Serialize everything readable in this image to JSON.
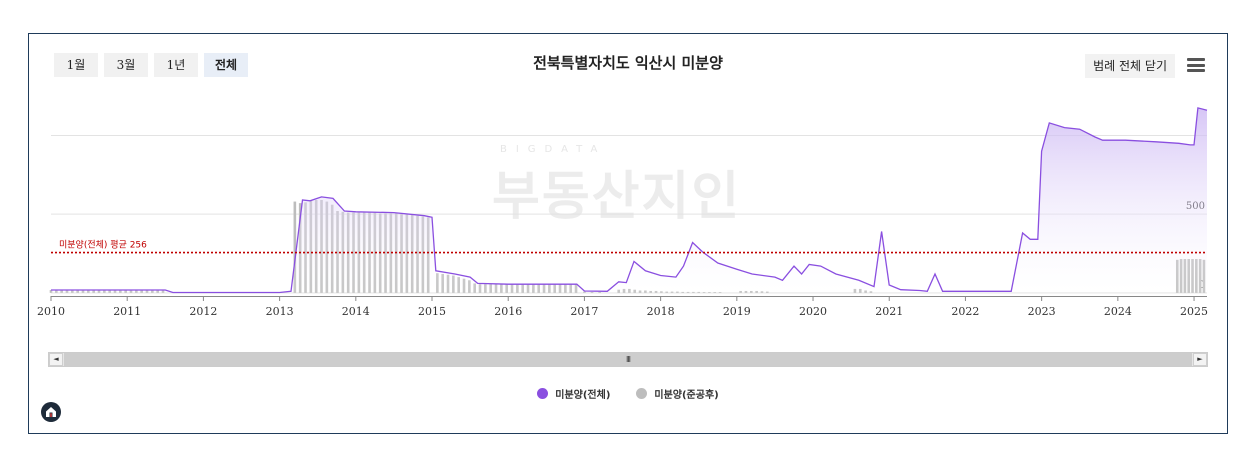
{
  "range_tabs": [
    {
      "label": "1월",
      "active": false
    },
    {
      "label": "3월",
      "active": false
    },
    {
      "label": "1년",
      "active": false
    },
    {
      "label": "전체",
      "active": true
    }
  ],
  "title": "전북특별자치도 익산시 미분양",
  "legend_toggle_label": "범례 전체 닫기",
  "menu_icon": "hamburger-menu-icon",
  "watermark": {
    "top": "BIGDATA",
    "text": "부동산지인"
  },
  "legend": [
    {
      "label": "미분양(전체)",
      "color": "#8a4fe0"
    },
    {
      "label": "미분양(준공후)",
      "color": "#bdbdbd"
    }
  ],
  "scroll_grip": "III",
  "colors": {
    "line": "#8a4fe0",
    "area_top": "#c9b3f3",
    "bars": "#bdbdbd",
    "average": "#c00000",
    "grid": "#e3e3e3"
  },
  "chart_data": {
    "type": "area",
    "title": "전북특별자치도 익산시 미분양",
    "x_ticks": [
      "2010",
      "2011",
      "2012",
      "2013",
      "2014",
      "2015",
      "2016",
      "2017",
      "2018",
      "2019",
      "2020",
      "2021",
      "2022",
      "2023",
      "2024",
      "2025"
    ],
    "y_ticks": [
      {
        "value": 0,
        "label": "0"
      },
      {
        "value": 500,
        "label": "500"
      },
      {
        "value": 1000,
        "label": ""
      }
    ],
    "ylim": [
      -20,
      1200
    ],
    "xlim": [
      2010.0,
      2025.17
    ],
    "average": {
      "value": 256,
      "label": "미분양(전체) 평균 256",
      "color": "#c00000"
    },
    "grid": true,
    "legend_position": "bottom",
    "series": [
      {
        "name": "미분양(전체)",
        "kind": "area-line",
        "points": [
          [
            2010.0,
            18
          ],
          [
            2011.5,
            18
          ],
          [
            2011.6,
            2
          ],
          [
            2013.0,
            2
          ],
          [
            2013.15,
            10
          ],
          [
            2013.3,
            590
          ],
          [
            2013.4,
            585
          ],
          [
            2013.55,
            610
          ],
          [
            2013.7,
            600
          ],
          [
            2013.85,
            520
          ],
          [
            2014.0,
            515
          ],
          [
            2014.5,
            510
          ],
          [
            2014.9,
            490
          ],
          [
            2015.0,
            480
          ],
          [
            2015.05,
            140
          ],
          [
            2015.3,
            120
          ],
          [
            2015.5,
            100
          ],
          [
            2015.6,
            60
          ],
          [
            2016.0,
            55
          ],
          [
            2016.9,
            55
          ],
          [
            2017.0,
            12
          ],
          [
            2017.3,
            10
          ],
          [
            2017.45,
            70
          ],
          [
            2017.55,
            65
          ],
          [
            2017.65,
            200
          ],
          [
            2017.8,
            140
          ],
          [
            2018.0,
            110
          ],
          [
            2018.2,
            100
          ],
          [
            2018.3,
            170
          ],
          [
            2018.42,
            320
          ],
          [
            2018.55,
            260
          ],
          [
            2018.75,
            190
          ],
          [
            2019.0,
            150
          ],
          [
            2019.2,
            120
          ],
          [
            2019.5,
            100
          ],
          [
            2019.6,
            80
          ],
          [
            2019.75,
            170
          ],
          [
            2019.85,
            120
          ],
          [
            2019.95,
            180
          ],
          [
            2020.1,
            170
          ],
          [
            2020.3,
            120
          ],
          [
            2020.6,
            80
          ],
          [
            2020.8,
            40
          ],
          [
            2020.9,
            390
          ],
          [
            2021.0,
            50
          ],
          [
            2021.15,
            20
          ],
          [
            2021.4,
            15
          ],
          [
            2021.5,
            10
          ],
          [
            2021.6,
            120
          ],
          [
            2021.7,
            10
          ],
          [
            2022.0,
            10
          ],
          [
            2022.3,
            10
          ],
          [
            2022.6,
            10
          ],
          [
            2022.75,
            380
          ],
          [
            2022.85,
            340
          ],
          [
            2022.95,
            340
          ],
          [
            2023.0,
            900
          ],
          [
            2023.1,
            1080
          ],
          [
            2023.3,
            1050
          ],
          [
            2023.5,
            1040
          ],
          [
            2023.7,
            990
          ],
          [
            2023.8,
            970
          ],
          [
            2024.1,
            970
          ],
          [
            2024.5,
            960
          ],
          [
            2024.8,
            950
          ],
          [
            2024.95,
            940
          ],
          [
            2025.0,
            940
          ],
          [
            2025.05,
            1175
          ],
          [
            2025.17,
            1160
          ]
        ]
      },
      {
        "name": "미분양(준공후)",
        "kind": "bar",
        "points": [
          [
            2010.0,
            18
          ],
          [
            2010.07,
            18
          ],
          [
            2010.14,
            18
          ],
          [
            2010.21,
            18
          ],
          [
            2010.28,
            18
          ],
          [
            2010.35,
            18
          ],
          [
            2010.42,
            18
          ],
          [
            2010.49,
            18
          ],
          [
            2010.56,
            18
          ],
          [
            2010.63,
            18
          ],
          [
            2010.7,
            18
          ],
          [
            2010.77,
            18
          ],
          [
            2010.84,
            18
          ],
          [
            2010.91,
            18
          ],
          [
            2010.98,
            18
          ],
          [
            2011.05,
            18
          ],
          [
            2011.12,
            18
          ],
          [
            2011.19,
            18
          ],
          [
            2011.26,
            18
          ],
          [
            2011.33,
            18
          ],
          [
            2011.4,
            18
          ],
          [
            2011.47,
            18
          ],
          [
            2013.2,
            580
          ],
          [
            2013.27,
            570
          ],
          [
            2013.34,
            575
          ],
          [
            2013.41,
            585
          ],
          [
            2013.48,
            590
          ],
          [
            2013.55,
            590
          ],
          [
            2013.62,
            580
          ],
          [
            2013.69,
            560
          ],
          [
            2013.76,
            520
          ],
          [
            2013.83,
            515
          ],
          [
            2013.9,
            510
          ],
          [
            2013.97,
            510
          ],
          [
            2014.04,
            510
          ],
          [
            2014.11,
            510
          ],
          [
            2014.18,
            510
          ],
          [
            2014.25,
            510
          ],
          [
            2014.32,
            505
          ],
          [
            2014.39,
            505
          ],
          [
            2014.46,
            505
          ],
          [
            2014.53,
            505
          ],
          [
            2014.6,
            500
          ],
          [
            2014.67,
            500
          ],
          [
            2014.74,
            495
          ],
          [
            2014.81,
            490
          ],
          [
            2014.88,
            485
          ],
          [
            2014.95,
            480
          ],
          [
            2015.07,
            125
          ],
          [
            2015.14,
            120
          ],
          [
            2015.21,
            115
          ],
          [
            2015.28,
            110
          ],
          [
            2015.35,
            100
          ],
          [
            2015.42,
            90
          ],
          [
            2015.49,
            80
          ],
          [
            2015.56,
            60
          ],
          [
            2015.63,
            55
          ],
          [
            2015.7,
            55
          ],
          [
            2015.77,
            55
          ],
          [
            2015.84,
            55
          ],
          [
            2015.91,
            55
          ],
          [
            2015.98,
            55
          ],
          [
            2016.05,
            55
          ],
          [
            2016.12,
            55
          ],
          [
            2016.19,
            55
          ],
          [
            2016.26,
            55
          ],
          [
            2016.33,
            55
          ],
          [
            2016.4,
            55
          ],
          [
            2016.47,
            55
          ],
          [
            2016.54,
            55
          ],
          [
            2016.61,
            55
          ],
          [
            2016.68,
            55
          ],
          [
            2016.75,
            55
          ],
          [
            2016.82,
            55
          ],
          [
            2016.89,
            55
          ],
          [
            2017.0,
            8
          ],
          [
            2017.1,
            6
          ],
          [
            2017.2,
            6
          ],
          [
            2017.45,
            20
          ],
          [
            2017.52,
            25
          ],
          [
            2017.59,
            25
          ],
          [
            2017.66,
            20
          ],
          [
            2017.73,
            15
          ],
          [
            2017.8,
            15
          ],
          [
            2017.87,
            12
          ],
          [
            2017.94,
            12
          ],
          [
            2018.01,
            10
          ],
          [
            2018.08,
            8
          ],
          [
            2018.15,
            8
          ],
          [
            2018.22,
            8
          ],
          [
            2018.29,
            6
          ],
          [
            2018.36,
            6
          ],
          [
            2018.43,
            6
          ],
          [
            2018.5,
            6
          ],
          [
            2018.57,
            5
          ],
          [
            2018.64,
            5
          ],
          [
            2018.71,
            5
          ],
          [
            2018.78,
            5
          ],
          [
            2019.05,
            12
          ],
          [
            2019.12,
            12
          ],
          [
            2019.19,
            12
          ],
          [
            2019.26,
            12
          ],
          [
            2019.33,
            10
          ],
          [
            2019.4,
            8
          ],
          [
            2020.55,
            25
          ],
          [
            2020.62,
            25
          ],
          [
            2020.69,
            15
          ],
          [
            2020.76,
            10
          ]
        ]
      },
      {
        "name": "미분양(준공후)-2024",
        "kind": "bar",
        "points": [
          [
            2024.78,
            210
          ],
          [
            2024.83,
            215
          ],
          [
            2024.88,
            215
          ],
          [
            2024.93,
            215
          ],
          [
            2024.98,
            215
          ],
          [
            2025.03,
            215
          ],
          [
            2025.08,
            215
          ],
          [
            2025.13,
            210
          ]
        ]
      }
    ]
  }
}
